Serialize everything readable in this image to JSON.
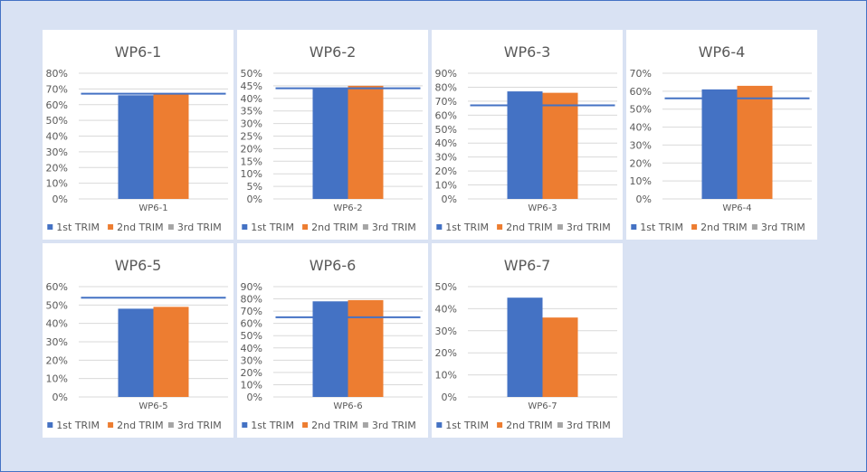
{
  "colors": {
    "background": "#d9e2f3",
    "panel": "#ffffff",
    "series_1": "#4472c4",
    "series_2": "#ed7d31",
    "series_3": "#a5a5a5",
    "target_line": "#4472c4",
    "grid": "#d9d9d9",
    "text": "#595959"
  },
  "chart_data": [
    {
      "type": "bar",
      "title": "WP6-1",
      "categories": [
        "WP6-1"
      ],
      "series": [
        {
          "name": "1st TRIM",
          "values": [
            66
          ]
        },
        {
          "name": "2nd TRIM",
          "values": [
            67
          ]
        },
        {
          "name": "3rd TRIM",
          "values": [
            null
          ]
        }
      ],
      "target": 67,
      "ylim": [
        0,
        80
      ],
      "ystep": 10,
      "yfmt": "%",
      "grid": true,
      "legend": "bottom"
    },
    {
      "type": "bar",
      "title": "WP6-2",
      "categories": [
        "WP6-2"
      ],
      "series": [
        {
          "name": "1st TRIM",
          "values": [
            44
          ]
        },
        {
          "name": "2nd TRIM",
          "values": [
            45
          ]
        },
        {
          "name": "3rd TRIM",
          "values": [
            null
          ]
        }
      ],
      "target": 44,
      "ylim": [
        0,
        50
      ],
      "ystep": 5,
      "yfmt": "%",
      "grid": true,
      "legend": "bottom"
    },
    {
      "type": "bar",
      "title": "WP6-3",
      "categories": [
        "WP6-3"
      ],
      "series": [
        {
          "name": "1st TRIM",
          "values": [
            77
          ]
        },
        {
          "name": "2nd TRIM",
          "values": [
            76
          ]
        },
        {
          "name": "3rd TRIM",
          "values": [
            null
          ]
        }
      ],
      "target": 67,
      "ylim": [
        0,
        90
      ],
      "ystep": 10,
      "yfmt": "%",
      "grid": true,
      "legend": "bottom"
    },
    {
      "type": "bar",
      "title": "WP6-4",
      "categories": [
        "WP6-4"
      ],
      "series": [
        {
          "name": "1st TRIM",
          "values": [
            61
          ]
        },
        {
          "name": "2nd TRIM",
          "values": [
            63
          ]
        },
        {
          "name": "3rd TRIM",
          "values": [
            null
          ]
        }
      ],
      "target": 56,
      "ylim": [
        0,
        70
      ],
      "ystep": 10,
      "yfmt": "%",
      "grid": true,
      "legend": "bottom"
    },
    {
      "type": "bar",
      "title": "WP6-5",
      "categories": [
        "WP6-5"
      ],
      "series": [
        {
          "name": "1st TRIM",
          "values": [
            48
          ]
        },
        {
          "name": "2nd TRIM",
          "values": [
            49
          ]
        },
        {
          "name": "3rd TRIM",
          "values": [
            null
          ]
        }
      ],
      "target": 54,
      "ylim": [
        0,
        60
      ],
      "ystep": 10,
      "yfmt": "%",
      "grid": true,
      "legend": "bottom"
    },
    {
      "type": "bar",
      "title": "WP6-6",
      "categories": [
        "WP6-6"
      ],
      "series": [
        {
          "name": "1st TRIM",
          "values": [
            78
          ]
        },
        {
          "name": "2nd TRIM",
          "values": [
            79
          ]
        },
        {
          "name": "3rd TRIM",
          "values": [
            null
          ]
        }
      ],
      "target": 65,
      "ylim": [
        0,
        90
      ],
      "ystep": 10,
      "yfmt": "%",
      "grid": true,
      "legend": "bottom"
    },
    {
      "type": "bar",
      "title": "WP6-7",
      "categories": [
        "WP6-7"
      ],
      "series": [
        {
          "name": "1st TRIM",
          "values": [
            45
          ]
        },
        {
          "name": "2nd TRIM",
          "values": [
            36
          ]
        },
        {
          "name": "3rd TRIM",
          "values": [
            null
          ]
        }
      ],
      "target": null,
      "ylim": [
        0,
        50
      ],
      "ystep": 10,
      "yfmt": "%",
      "grid": true,
      "legend": "bottom"
    }
  ]
}
